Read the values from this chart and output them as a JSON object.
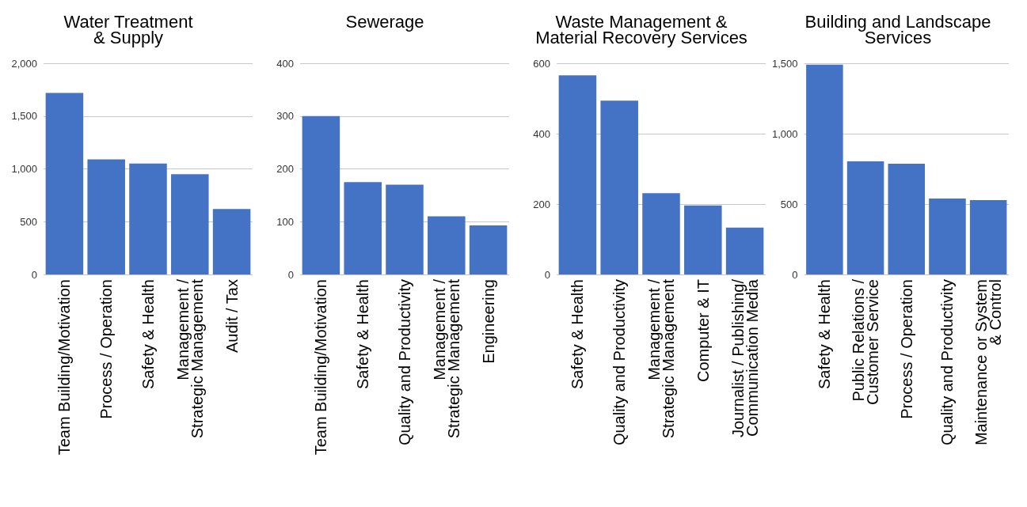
{
  "chart_data": [
    {
      "type": "bar",
      "title": "Water Treatment\n& Supply",
      "categories": [
        "Team Building/Motivation",
        "Process / Operation",
        "Safety & Health",
        "Management /\nStrategic Management",
        "Audit / Tax"
      ],
      "values": [
        1720,
        1090,
        1050,
        950,
        620
      ],
      "color": "#4472c4",
      "ylim": [
        0,
        2000
      ],
      "yticks": [
        0,
        {
          "value": 500,
          "label": "500"
        },
        {
          "value": 1000,
          "label": "1,000"
        },
        {
          "value": 1500,
          "label": "1,500"
        },
        {
          "value": 2000,
          "label": "2,000"
        }
      ],
      "grid": "y"
    },
    {
      "type": "bar",
      "title": "Sewerage",
      "categories": [
        "Team Building/Motivation",
        "Safety & Health",
        "Quality and Productivity",
        "Management /\nStrategic Management",
        "Engineering"
      ],
      "values": [
        300,
        175,
        170,
        110,
        93
      ],
      "color": "#4472c4",
      "ylim": [
        0,
        400
      ],
      "yticks": [
        0,
        100,
        200,
        300,
        400
      ],
      "grid": "y"
    },
    {
      "type": "bar",
      "title": "Waste Management &\nMaterial Recovery Services",
      "categories": [
        "Safety & Health",
        "Quality and Productivity",
        "Management /\nStrategic Management",
        "Computer & IT",
        "Journalist / Publishing/\nCommunication Media"
      ],
      "values": [
        566,
        494,
        231,
        196,
        133
      ],
      "color": "#4472c4",
      "ylim": [
        0,
        600
      ],
      "yticks": [
        0,
        200,
        400,
        600
      ],
      "grid": "y"
    },
    {
      "type": "bar",
      "title": "Building and Landscape\nServices",
      "categories": [
        "Safety & Health",
        "Public Relations /\nCustomer Service",
        "Process / Operation",
        "Quality and Productivity",
        "Maintenance or System\n& Control"
      ],
      "values": [
        1490,
        803,
        787,
        539,
        528
      ],
      "color": "#4472c4",
      "ylim": [
        0,
        1500
      ],
      "yticks": [
        0,
        {
          "value": 500,
          "label": "500"
        },
        {
          "value": 1000,
          "label": "1,000"
        },
        {
          "value": 1500,
          "label": "1,500"
        }
      ],
      "grid": "y"
    }
  ]
}
